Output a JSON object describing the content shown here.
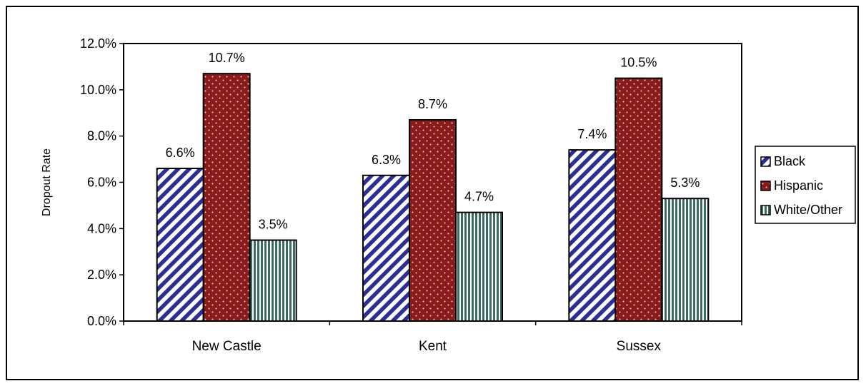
{
  "chart_data": {
    "type": "bar",
    "title": "",
    "xlabel": "",
    "ylabel": "Dropout Rate",
    "categories": [
      "New Castle",
      "Kent",
      "Sussex"
    ],
    "series": [
      {
        "name": "Black",
        "values": [
          6.6,
          6.3,
          7.4
        ],
        "labels": [
          "6.6%",
          "6.3%",
          "7.4%"
        ],
        "color": "#2b2f8f",
        "pattern": "diagonal-stripes"
      },
      {
        "name": "Hispanic",
        "values": [
          10.7,
          8.7,
          10.5
        ],
        "labels": [
          "10.7%",
          "8.7%",
          "10.5%"
        ],
        "color": "#8b1a1a",
        "pattern": "dots"
      },
      {
        "name": "White/Other",
        "values": [
          3.5,
          4.7,
          5.3
        ],
        "labels": [
          "3.5%",
          "4.7%",
          "5.3%"
        ],
        "color": "#3c6b63",
        "pattern": "vertical-stripes"
      }
    ],
    "ylim": [
      0,
      12
    ],
    "yticks": [
      "0.0%",
      "2.0%",
      "4.0%",
      "6.0%",
      "8.0%",
      "10.0%",
      "12.0%"
    ],
    "grid": false,
    "legend_position": "right"
  }
}
